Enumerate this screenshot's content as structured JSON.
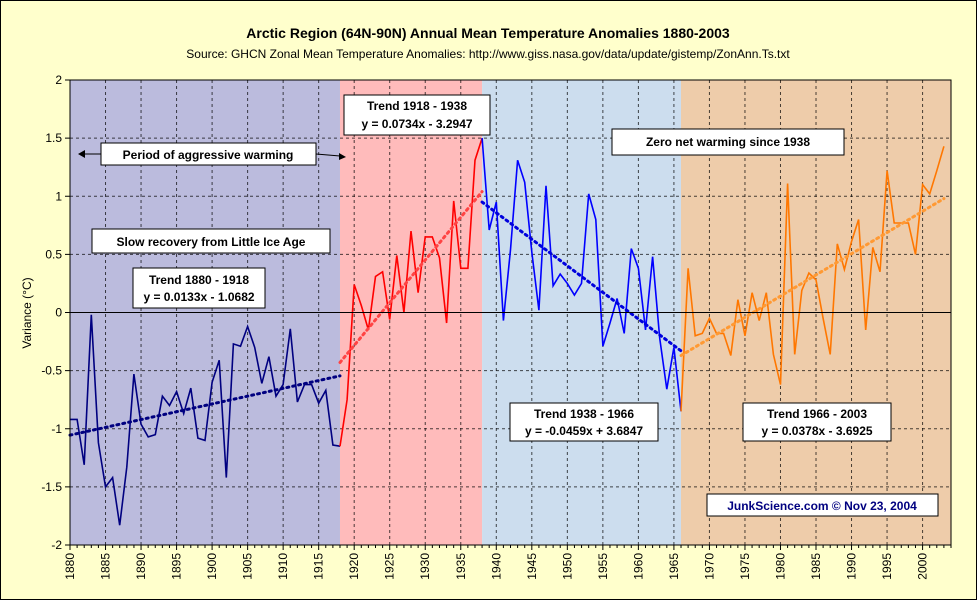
{
  "chart_data": {
    "type": "line",
    "title": "Arctic Region (64N-90N) Annual Mean Temperature Anomalies 1880-2003",
    "subtitle": "Source: GHCN Zonal Mean Temperature Anomalies: http://www.giss.nasa.gov/data/update/gistemp/ZonAnn.Ts.txt",
    "ylabel": "Variance (°C)",
    "xlabel": "",
    "xlim": [
      1880,
      2004
    ],
    "ylim": [
      -2,
      2
    ],
    "yticks": [
      "2",
      "1.5",
      "1",
      "0.5",
      "0",
      "-0.5",
      "-1",
      "-1.5",
      "-2"
    ],
    "ytick_values": [
      2,
      1.5,
      1,
      0.5,
      0,
      -0.5,
      -1,
      -1.5,
      -2
    ],
    "xticks": [
      "1880",
      "1885",
      "1890",
      "1895",
      "1900",
      "1905",
      "1910",
      "1915",
      "1920",
      "1925",
      "1930",
      "1935",
      "1940",
      "1945",
      "1950",
      "1955",
      "1960",
      "1965",
      "1970",
      "1975",
      "1980",
      "1985",
      "1990",
      "1995",
      "2000"
    ],
    "grid": true,
    "colors": {
      "background": "#ffffcc",
      "period1_band": "#bbbbdd",
      "period2_band": "#ffbbbb",
      "period3_band": "#ccddee",
      "period4_band": "#eeccaa",
      "period1_line": "#000080",
      "period2_line": "#ff0000",
      "period3_line": "#0000ff",
      "period4_line": "#ff7700",
      "trend1": "#000080",
      "trend2": "#ff4444",
      "trend3": "#0000dd",
      "trend4": "#ff9933",
      "credit": "#000080"
    },
    "periods": [
      {
        "start": 1880,
        "end": 1918,
        "x": [
          1880,
          1881,
          1882,
          1883,
          1884,
          1885,
          1886,
          1887,
          1888,
          1889,
          1890,
          1891,
          1892,
          1893,
          1894,
          1895,
          1896,
          1897,
          1898,
          1899,
          1900,
          1901,
          1902,
          1903,
          1904,
          1905,
          1906,
          1907,
          1908,
          1909,
          1910,
          1911,
          1912,
          1913,
          1914,
          1915,
          1916,
          1917,
          1918
        ],
        "y": [
          -0.92,
          -0.92,
          -1.31,
          -0.02,
          -1.12,
          -1.5,
          -1.42,
          -1.83,
          -1.33,
          -0.53,
          -0.96,
          -1.07,
          -1.05,
          -0.72,
          -0.8,
          -0.68,
          -0.87,
          -0.65,
          -1.08,
          -1.1,
          -0.6,
          -0.41,
          -1.42,
          -0.27,
          -0.29,
          -0.12,
          -0.3,
          -0.61,
          -0.38,
          -0.72,
          -0.62,
          -0.14,
          -0.77,
          -0.62,
          -0.62,
          -0.78,
          -0.67,
          -1.14,
          -1.15
        ]
      },
      {
        "start": 1918,
        "end": 1938,
        "x": [
          1918,
          1919,
          1920,
          1921,
          1922,
          1923,
          1924,
          1925,
          1926,
          1927,
          1928,
          1929,
          1930,
          1931,
          1932,
          1933,
          1934,
          1935,
          1936,
          1937,
          1938
        ],
        "y": [
          -1.15,
          -0.75,
          0.24,
          0.06,
          -0.15,
          0.31,
          0.35,
          -0.06,
          0.49,
          0.0,
          0.7,
          0.17,
          0.65,
          0.65,
          0.47,
          -0.09,
          0.96,
          0.38,
          0.38,
          1.31,
          1.5
        ]
      },
      {
        "start": 1938,
        "end": 1966,
        "x": [
          1938,
          1939,
          1940,
          1941,
          1942,
          1943,
          1944,
          1945,
          1946,
          1947,
          1948,
          1949,
          1950,
          1951,
          1952,
          1953,
          1954,
          1955,
          1956,
          1957,
          1958,
          1959,
          1960,
          1961,
          1962,
          1963,
          1964,
          1965,
          1966
        ],
        "y": [
          1.5,
          0.71,
          0.95,
          -0.07,
          0.54,
          1.31,
          1.12,
          0.52,
          0.02,
          1.09,
          0.23,
          0.33,
          0.25,
          0.15,
          0.25,
          1.02,
          0.8,
          -0.29,
          -0.09,
          0.12,
          -0.18,
          0.55,
          0.38,
          -0.15,
          0.48,
          -0.22,
          -0.66,
          -0.3,
          -0.85
        ]
      },
      {
        "start": 1966,
        "end": 2003,
        "x": [
          1966,
          1967,
          1968,
          1969,
          1970,
          1971,
          1972,
          1973,
          1974,
          1975,
          1976,
          1977,
          1978,
          1979,
          1980,
          1981,
          1982,
          1983,
          1984,
          1985,
          1986,
          1987,
          1988,
          1989,
          1990,
          1991,
          1992,
          1993,
          1994,
          1995,
          1996,
          1997,
          1998,
          1999,
          2000,
          2001,
          2002,
          2003
        ],
        "y": [
          -0.85,
          0.38,
          -0.2,
          -0.18,
          -0.05,
          -0.18,
          -0.18,
          -0.37,
          0.11,
          -0.2,
          0.17,
          -0.07,
          0.17,
          -0.36,
          -0.62,
          1.11,
          -0.36,
          0.19,
          0.34,
          0.28,
          -0.05,
          -0.36,
          0.59,
          0.37,
          0.61,
          0.8,
          -0.15,
          0.56,
          0.35,
          1.22,
          0.77,
          0.77,
          0.77,
          0.5,
          1.1,
          1.02,
          1.22,
          1.43
        ]
      }
    ],
    "trends": [
      {
        "label": "Trend 1880 - 1918",
        "equation": "y = 0.0133x - 1.0682",
        "start": 1880,
        "end": 1918,
        "y_start": -1.055,
        "y_end": -0.545
      },
      {
        "label": "Trend 1918 - 1938",
        "equation": "y = 0.0734x - 3.2947",
        "start": 1918,
        "end": 1938,
        "y_start": -0.43,
        "y_end": 1.04
      },
      {
        "label": "Trend 1938 - 1966",
        "equation": "y = -0.0459x + 3.6847",
        "start": 1938,
        "end": 1966,
        "y_start": 0.95,
        "y_end": -0.33
      },
      {
        "label": "Trend 1966 - 2003",
        "equation": "y = 0.0378x - 3.6925",
        "start": 1966,
        "end": 2003,
        "y_start": -0.37,
        "y_end": 0.98
      }
    ]
  },
  "annotations": {
    "slow_recovery": "Slow recovery from Little Ice Age",
    "aggressive": "Period of aggressive warming",
    "zero_net": "Zero net warming since 1938",
    "credit": "JunkScience.com © Nov 23, 2004"
  }
}
